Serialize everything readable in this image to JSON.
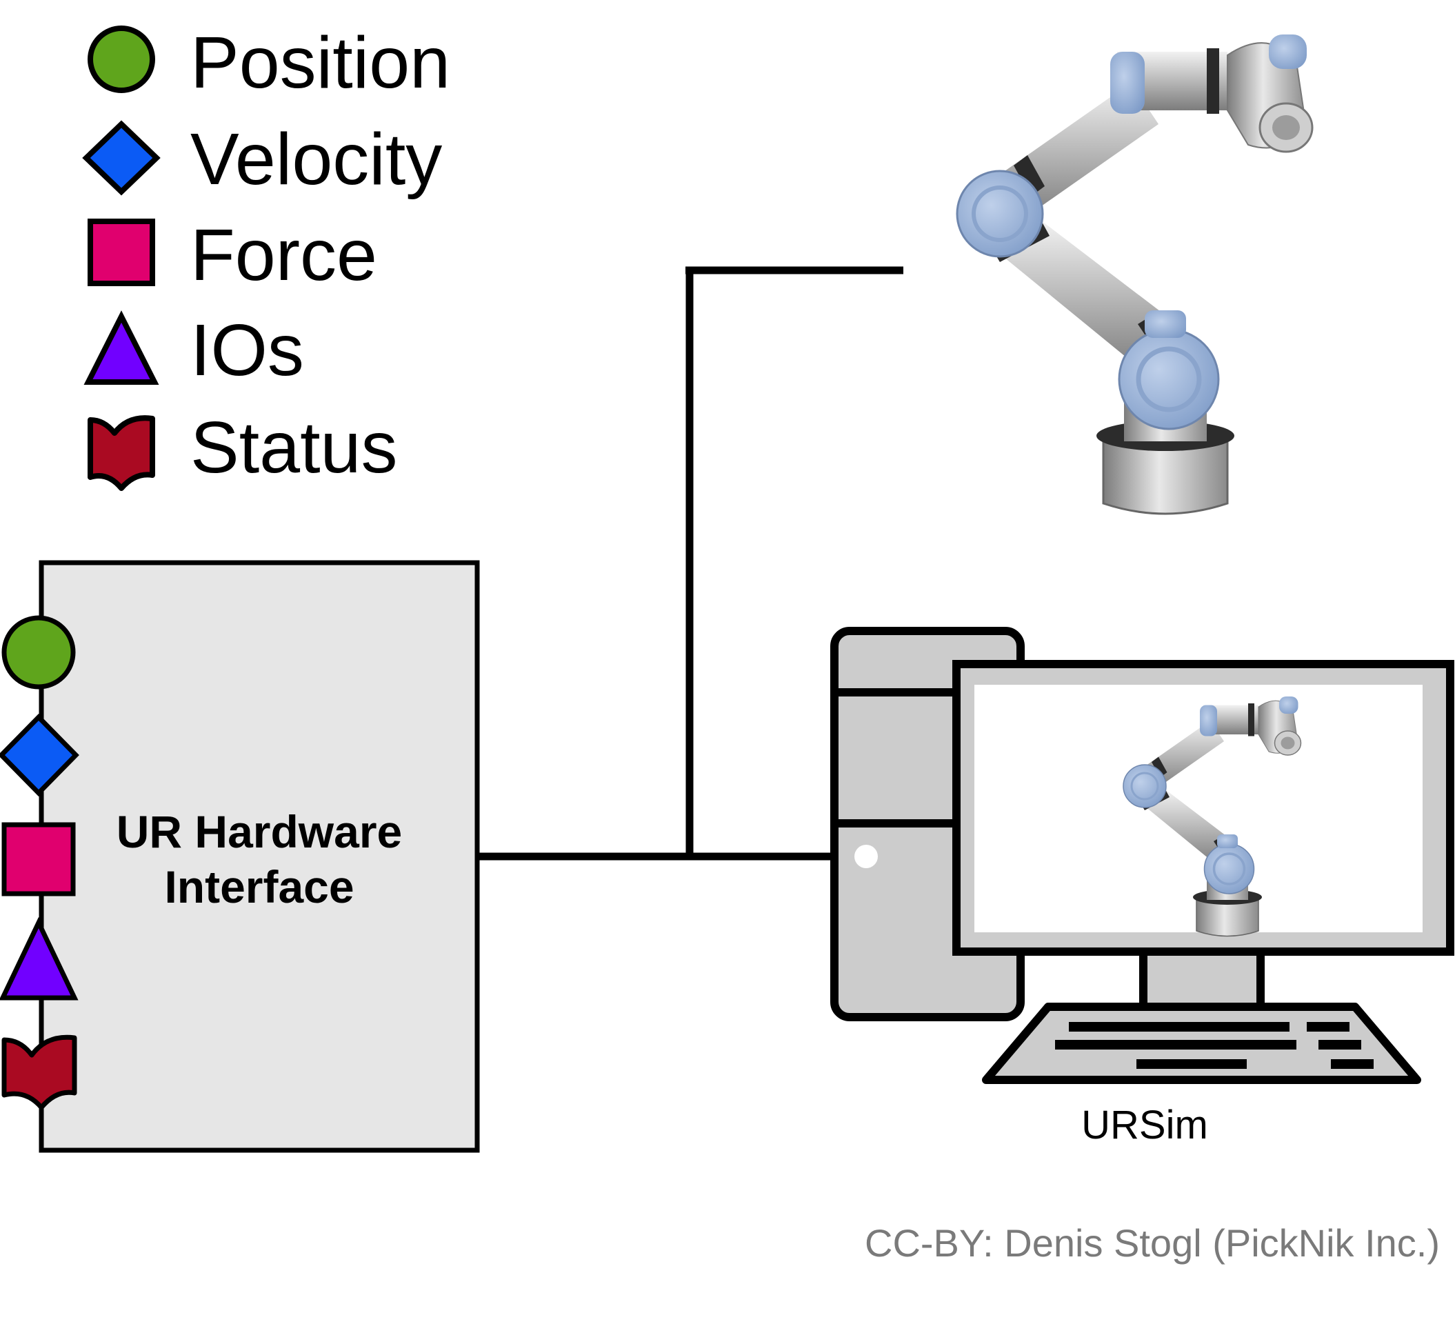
{
  "legend": {
    "items": [
      {
        "label": "Position",
        "shape": "circle",
        "icon": "position-circle-icon",
        "color": "#5fa51c"
      },
      {
        "label": "Velocity",
        "shape": "diamond",
        "icon": "velocity-diamond-icon",
        "color": "#0b5bf5"
      },
      {
        "label": "Force",
        "shape": "square",
        "icon": "force-square-icon",
        "color": "#e0006e"
      },
      {
        "label": "IOs",
        "shape": "triangle",
        "icon": "ios-triangle-icon",
        "color": "#7100ff"
      },
      {
        "label": "Status",
        "shape": "wave-flag",
        "icon": "status-flag-icon",
        "color": "#aa0a22"
      }
    ]
  },
  "hardware_block": {
    "title_line1": "UR Hardware",
    "title_line2": "Interface",
    "fill": "#e6e6e6"
  },
  "computer": {
    "label": "URSim",
    "case_fill": "#cccccc"
  },
  "robot": {
    "icon": "ur-robot-arm-icon",
    "joint_color": "#9fb7da"
  },
  "credit": "CC-BY: Denis Stogl (PickNik Inc.)"
}
